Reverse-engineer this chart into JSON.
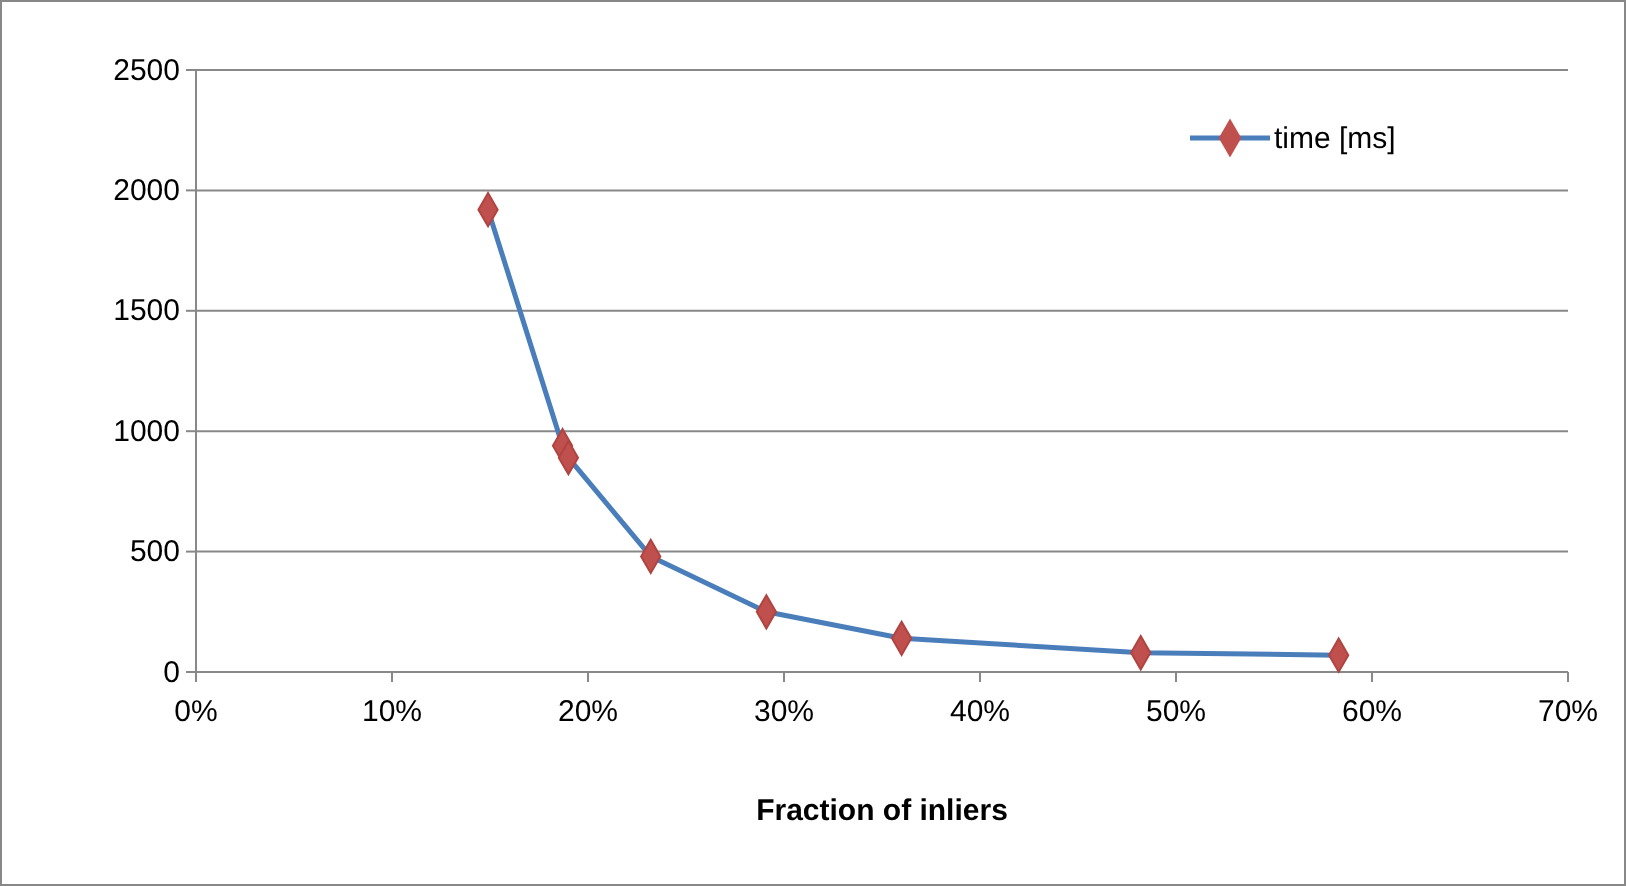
{
  "chart_data": {
    "type": "line",
    "xlabel": "Fraction of inliers",
    "x": [
      14.9,
      18.7,
      19.0,
      23.2,
      29.1,
      36.0,
      48.2,
      58.3
    ],
    "series": [
      {
        "name": "time [ms]",
        "color": "#4a7ebb",
        "values": [
          1920,
          940,
          890,
          480,
          250,
          140,
          80,
          70
        ]
      }
    ],
    "xlim": [
      0,
      70
    ],
    "xticks": [
      {
        "value": 0,
        "label": "0%"
      },
      {
        "value": 10,
        "label": "10%"
      },
      {
        "value": 20,
        "label": "20%"
      },
      {
        "value": 30,
        "label": "30%"
      },
      {
        "value": 40,
        "label": "40%"
      },
      {
        "value": 50,
        "label": "50%"
      },
      {
        "value": 60,
        "label": "60%"
      },
      {
        "value": 70,
        "label": "70%"
      }
    ],
    "ylim": [
      0,
      2500
    ],
    "yticks": [
      0,
      500,
      1000,
      1500,
      2000,
      2500
    ],
    "grid": "y",
    "legend": "top right",
    "marker": "diamond",
    "line_style": "solid"
  }
}
